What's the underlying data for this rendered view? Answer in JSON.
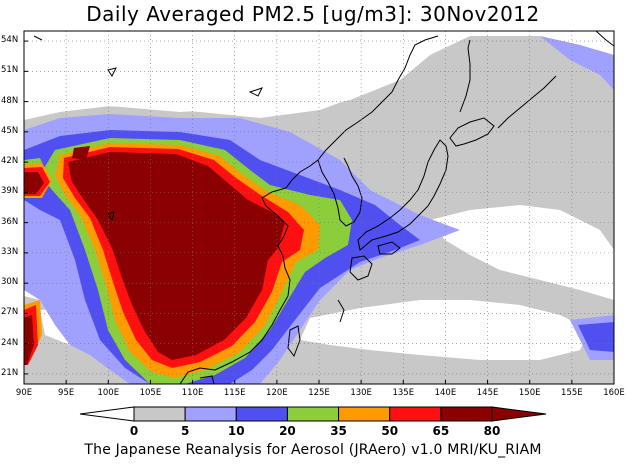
{
  "title": "Daily Averaged PM2.5 [ug/m3]: 30Nov2012",
  "credit": "The Japanese Reanalysis for Aerosol (JRAero) v1.0 MRI/KU_RIAM",
  "map": {
    "lon_range": [
      90,
      160
    ],
    "lat_range": [
      20,
      55
    ],
    "lat_labels": [
      "54N",
      "51N",
      "48N",
      "45N",
      "42N",
      "39N",
      "36N",
      "33N",
      "30N",
      "27N",
      "24N",
      "21N"
    ],
    "lon_labels": [
      "90E",
      "95E",
      "100E",
      "105E",
      "110E",
      "115E",
      "120E",
      "125E",
      "130E",
      "135E",
      "140E",
      "145E",
      "150E",
      "155E",
      "160E"
    ],
    "grid": true,
    "grid_style": "dotted"
  },
  "colorbar": {
    "levels": [
      "0",
      "5",
      "10",
      "20",
      "35",
      "50",
      "65",
      "80"
    ],
    "colors": [
      "#ffffff",
      "#c8c8c8",
      "#a0a0ff",
      "#5050f0",
      "#8ccd3c",
      "#ff9a00",
      "#ff1010",
      "#8b0000"
    ],
    "triangle_left_color": "#ffffff",
    "triangle_right_color": "#8b0000"
  },
  "colors": {
    "c0": "#ffffff",
    "c5": "#c8c8c8",
    "c10": "#a0a0ff",
    "c20": "#5050f0",
    "c35": "#8ccd3c",
    "c50": "#ff9a00",
    "c65": "#ff1010",
    "c80": "#8b0000",
    "coast": "#000000"
  }
}
